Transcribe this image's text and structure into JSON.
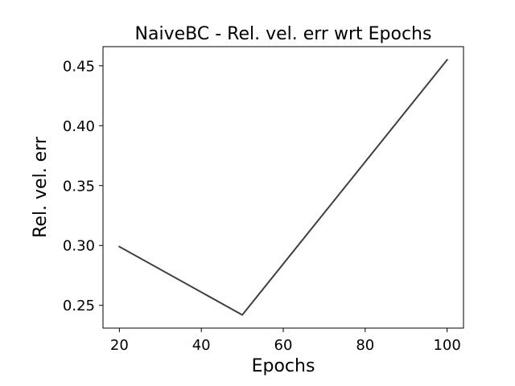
{
  "chart_data": {
    "type": "line",
    "title": "NaiveBC - Rel. vel. err wrt Epochs",
    "xlabel": "Epochs",
    "ylabel": "Rel. vel. err",
    "x": [
      20,
      50,
      100
    ],
    "series": [
      {
        "values": [
          0.299,
          0.242,
          0.455
        ],
        "color": "#404040"
      }
    ],
    "xlim": [
      16,
      104
    ],
    "ylim": [
      0.231,
      0.466
    ],
    "xticks": [
      20,
      40,
      60,
      80,
      100
    ],
    "xtick_labels": [
      "20",
      "40",
      "60",
      "80",
      "100"
    ],
    "yticks": [
      0.25,
      0.3,
      0.35,
      0.4,
      0.45
    ],
    "ytick_labels": [
      "0.25",
      "0.30",
      "0.35",
      "0.40",
      "0.45"
    ],
    "grid": false,
    "legend": "none"
  }
}
